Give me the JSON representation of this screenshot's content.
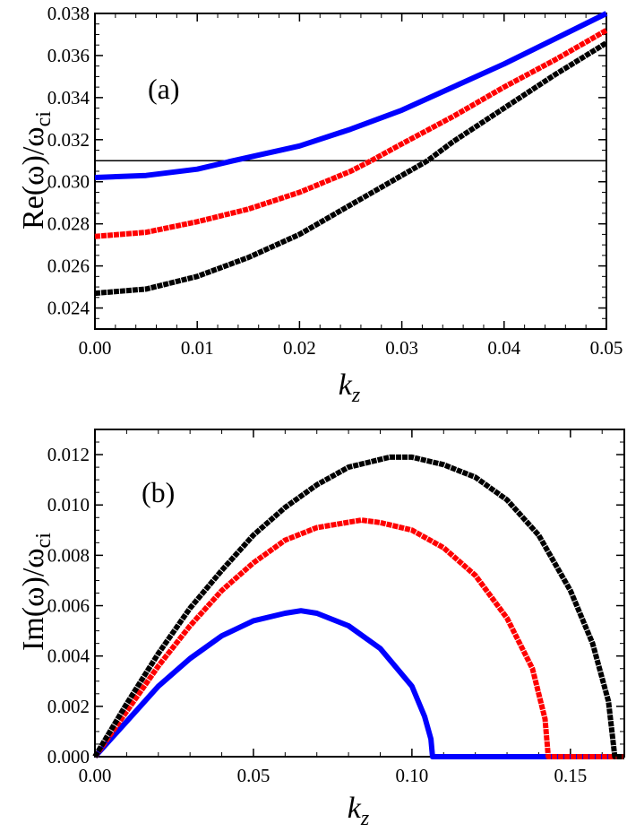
{
  "chart_data": [
    {
      "type": "line",
      "panel_label": "(a)",
      "xlabel": "k_z",
      "xlabel_main": "k",
      "xlabel_sub": "z",
      "ylabel": "Re(ω)/ω_ci",
      "ylabel_main": "Re(ω)/ω",
      "ylabel_sub": "ci",
      "xlim": [
        0,
        0.05
      ],
      "ylim": [
        0.023,
        0.038
      ],
      "xticks": [
        "0.00",
        "0.01",
        "0.02",
        "0.03",
        "0.04",
        "0.05"
      ],
      "yticks": [
        "0.024",
        "0.026",
        "0.028",
        "0.030",
        "0.032",
        "0.034",
        "0.036",
        "0.038"
      ],
      "grid": false,
      "hline": 0.031,
      "series": [
        {
          "color": "#0000ff",
          "style": "solid",
          "x": [
            0,
            0.005,
            0.01,
            0.0135,
            0.02,
            0.025,
            0.03,
            0.035,
            0.04,
            0.045,
            0.05
          ],
          "y": [
            0.0302,
            0.0303,
            0.0306,
            0.031,
            0.0317,
            0.0325,
            0.0334,
            0.0345,
            0.0356,
            0.0368,
            0.038
          ]
        },
        {
          "color": "#ff0000",
          "style": "dashed",
          "x": [
            0,
            0.005,
            0.01,
            0.015,
            0.02,
            0.025,
            0.027,
            0.03,
            0.035,
            0.04,
            0.045,
            0.05
          ],
          "y": [
            0.0274,
            0.0276,
            0.0281,
            0.0287,
            0.0295,
            0.0305,
            0.031,
            0.0318,
            0.0331,
            0.0345,
            0.0358,
            0.0372
          ]
        },
        {
          "color": "#000000",
          "style": "dashed",
          "x": [
            0,
            0.005,
            0.01,
            0.015,
            0.02,
            0.025,
            0.03,
            0.0325,
            0.035,
            0.04,
            0.045,
            0.05
          ],
          "y": [
            0.0247,
            0.0249,
            0.0255,
            0.0264,
            0.0275,
            0.0289,
            0.0303,
            0.031,
            0.0319,
            0.0335,
            0.0351,
            0.0366
          ]
        }
      ]
    },
    {
      "type": "line",
      "panel_label": "(b)",
      "xlabel": "k_z",
      "xlabel_main": "k",
      "xlabel_sub": "z",
      "ylabel": "Im(ω)/ω_ci",
      "ylabel_main": "Im(ω)/ω",
      "ylabel_sub": "ci",
      "xlim": [
        0,
        0.167
      ],
      "ylim": [
        0,
        0.013
      ],
      "xticks": [
        "0.00",
        "0.05",
        "0.10",
        "0.15"
      ],
      "yticks": [
        "0.000",
        "0.002",
        "0.004",
        "0.006",
        "0.008",
        "0.010",
        "0.012"
      ],
      "grid": false,
      "series": [
        {
          "color": "#0000ff",
          "style": "solid",
          "x": [
            0,
            0.01,
            0.02,
            0.03,
            0.04,
            0.05,
            0.06,
            0.065,
            0.07,
            0.08,
            0.09,
            0.1,
            0.104,
            0.106,
            0.1065,
            0.167
          ],
          "y": [
            0,
            0.0014,
            0.0028,
            0.0039,
            0.0048,
            0.0054,
            0.0057,
            0.0058,
            0.0057,
            0.0052,
            0.0043,
            0.0028,
            0.0016,
            0.0007,
            0,
            0
          ]
        },
        {
          "color": "#ff0000",
          "style": "dashed",
          "x": [
            0,
            0.01,
            0.02,
            0.03,
            0.04,
            0.05,
            0.06,
            0.07,
            0.084,
            0.09,
            0.1,
            0.11,
            0.12,
            0.13,
            0.138,
            0.142,
            0.143,
            0.167
          ],
          "y": [
            0,
            0.0018,
            0.0036,
            0.0052,
            0.0066,
            0.0077,
            0.0086,
            0.0091,
            0.0094,
            0.0093,
            0.009,
            0.0083,
            0.0072,
            0.0055,
            0.0035,
            0.0015,
            0,
            0
          ]
        },
        {
          "color": "#000000",
          "style": "dashed",
          "x": [
            0,
            0.01,
            0.02,
            0.03,
            0.04,
            0.05,
            0.06,
            0.07,
            0.08,
            0.093,
            0.1,
            0.11,
            0.12,
            0.13,
            0.14,
            0.15,
            0.157,
            0.162,
            0.164,
            0.167
          ],
          "y": [
            0,
            0.0021,
            0.0041,
            0.0059,
            0.0074,
            0.0088,
            0.0099,
            0.0108,
            0.0115,
            0.0119,
            0.0119,
            0.0116,
            0.0111,
            0.0102,
            0.0088,
            0.0066,
            0.0045,
            0.0022,
            0,
            0
          ]
        }
      ]
    }
  ]
}
